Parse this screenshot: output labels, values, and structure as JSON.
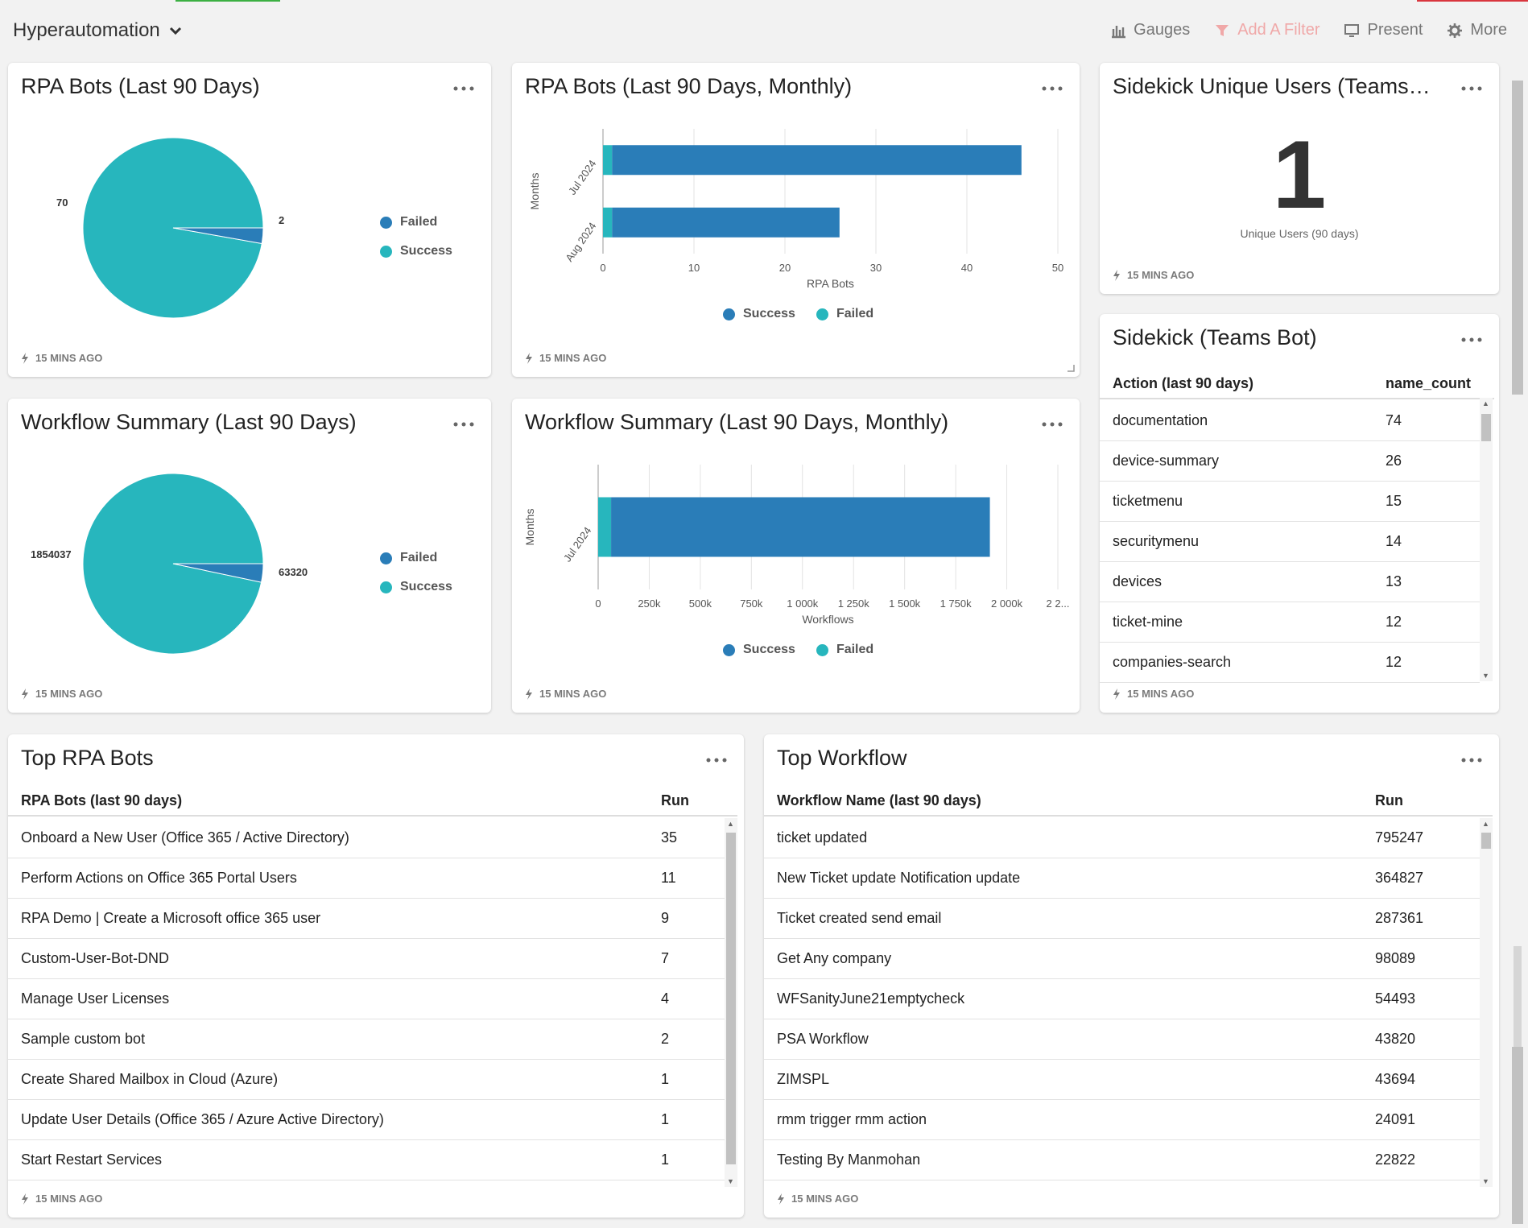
{
  "header": {
    "dashboard_title": "Hyperautomation",
    "toolbar": {
      "gauges": "Gauges",
      "add_filter": "Add A Filter",
      "present": "Present",
      "more": "More"
    }
  },
  "colors": {
    "success": "#2a7db8",
    "failed": "#27b6bd",
    "accent_green": "#3cb043",
    "accent_red": "#d9363e"
  },
  "footer_text": "15 MINS AGO",
  "cards": {
    "rpa_pie": {
      "title": "RPA Bots (Last 90 Days)",
      "label_success": "70",
      "label_failed": "2",
      "legend": [
        "Failed",
        "Success"
      ]
    },
    "rpa_monthly": {
      "title": "RPA Bots (Last 90 Days, Monthly)",
      "legend": [
        "Success",
        "Failed"
      ]
    },
    "sidekick_users": {
      "title": "Sidekick Unique Users (Teams B...",
      "value": "1",
      "subtitle": "Unique Users (90 days)"
    },
    "wf_pie": {
      "title": "Workflow Summary (Last 90 Days)",
      "label_success": "1854037",
      "label_failed": "63320",
      "legend": [
        "Failed",
        "Success"
      ]
    },
    "wf_monthly": {
      "title": "Workflow Summary (Last 90 Days, Monthly)",
      "legend": [
        "Success",
        "Failed"
      ]
    },
    "sidekick_bot": {
      "title": "Sidekick (Teams Bot)",
      "columns": [
        "Action (last 90 days)",
        "name_count"
      ],
      "rows": [
        [
          "documentation",
          "74"
        ],
        [
          "device-summary",
          "26"
        ],
        [
          "ticketmenu",
          "15"
        ],
        [
          "securitymenu",
          "14"
        ],
        [
          "devices",
          "13"
        ],
        [
          "ticket-mine",
          "12"
        ],
        [
          "companies-search",
          "12"
        ]
      ]
    },
    "top_rpa": {
      "title": "Top RPA Bots",
      "columns": [
        "RPA Bots (last 90 days)",
        "Run"
      ],
      "rows": [
        [
          "Onboard a New User (Office 365 / Active Directory)",
          "35"
        ],
        [
          "Perform Actions on Office 365 Portal Users",
          "11"
        ],
        [
          "RPA Demo | Create a Microsoft office 365 user",
          "9"
        ],
        [
          "Custom-User-Bot-DND",
          "7"
        ],
        [
          "Manage User Licenses",
          "4"
        ],
        [
          "Sample custom bot",
          "2"
        ],
        [
          "Create Shared Mailbox in Cloud (Azure)",
          "1"
        ],
        [
          "Update User Details (Office 365 / Azure Active Directory)",
          "1"
        ],
        [
          "Start Restart Services",
          "1"
        ]
      ]
    },
    "top_workflow": {
      "title": "Top Workflow",
      "columns": [
        "Workflow Name (last 90 days)",
        "Run"
      ],
      "rows": [
        [
          "ticket updated",
          "795247"
        ],
        [
          "New Ticket update Notification update",
          "364827"
        ],
        [
          "Ticket created send email",
          "287361"
        ],
        [
          "Get Any company",
          "98089"
        ],
        [
          "WFSanityJune21emptycheck",
          "54493"
        ],
        [
          "PSA Workflow",
          "43820"
        ],
        [
          "ZIMSPL",
          "43694"
        ],
        [
          "rmm trigger rmm action",
          "24091"
        ],
        [
          "Testing By Manmohan",
          "22822"
        ]
      ]
    }
  },
  "chart_data": [
    {
      "type": "pie",
      "title": "RPA Bots (Last 90 Days)",
      "slices": [
        {
          "name": "Failed",
          "value": 2
        },
        {
          "name": "Success",
          "value": 70
        }
      ]
    },
    {
      "type": "bar",
      "orientation": "horizontal",
      "stacked": true,
      "title": "RPA Bots (Last 90 Days, Monthly)",
      "categories": [
        "Jul 2024",
        "Aug 2024"
      ],
      "series": [
        {
          "name": "Failed",
          "values": [
            1,
            1
          ]
        },
        {
          "name": "Success",
          "values": [
            45,
            25
          ]
        }
      ],
      "xlabel": "RPA Bots",
      "ylabel": "Months",
      "xlim": [
        0,
        50
      ],
      "ticks": [
        "0",
        "10",
        "20",
        "30",
        "40",
        "50"
      ],
      "legend": "bottom",
      "grid": true
    },
    {
      "type": "pie",
      "title": "Workflow Summary (Last 90 Days)",
      "slices": [
        {
          "name": "Failed",
          "value": 63320
        },
        {
          "name": "Success",
          "value": 1854037
        }
      ]
    },
    {
      "type": "bar",
      "orientation": "horizontal",
      "stacked": true,
      "title": "Workflow Summary (Last 90 Days, Monthly)",
      "categories": [
        "Jul 2024"
      ],
      "series": [
        {
          "name": "Failed",
          "values": [
            63320
          ]
        },
        {
          "name": "Success",
          "values": [
            1854037
          ]
        }
      ],
      "xlabel": "Workflows",
      "ylabel": "Months",
      "xlim": [
        0,
        2250000
      ],
      "ticks": [
        "0",
        "250k",
        "500k",
        "750k",
        "1 000k",
        "1 250k",
        "1 500k",
        "1 750k",
        "2 000k",
        "2 2..."
      ],
      "legend": "bottom",
      "grid": true
    }
  ]
}
